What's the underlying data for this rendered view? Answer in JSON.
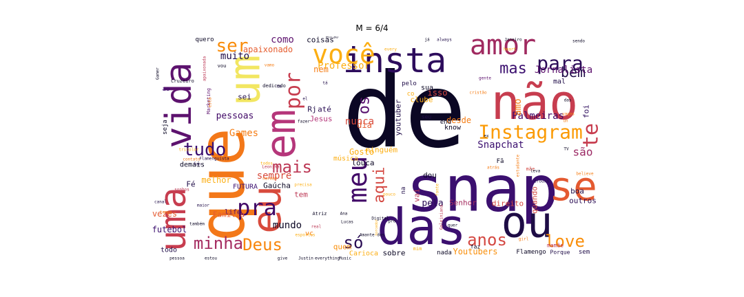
{
  "title": "M = 6/4",
  "word_cloud": {
    "words": [
      {
        "text": "de",
        "color": "#0b0724"
      },
      {
        "text": "snap",
        "color": "#3b0f6f"
      },
      {
        "text": "que",
        "color": "#f37819"
      },
      {
        "text": "das",
        "color": "#3b0f6f"
      },
      {
        "text": "não",
        "color": "#c73d4f"
      },
      {
        "text": "uma",
        "color": "#c73d4f"
      },
      {
        "text": "vida",
        "color": "#5d126e"
      },
      {
        "text": "eu",
        "color": "#d84a3c"
      },
      {
        "text": "insta",
        "color": "#2d0c5c"
      },
      {
        "text": "se",
        "color": "#e45a31"
      },
      {
        "text": "ou",
        "color": "#1e0c45"
      },
      {
        "text": "em",
        "color": "#b5367a"
      },
      {
        "text": "um",
        "color": "#f2e661"
      },
      {
        "text": "Instagram",
        "color": "#fb9b06"
      },
      {
        "text": "você",
        "color": "#fcae12"
      },
      {
        "text": "amor",
        "color": "#a02a60"
      },
      {
        "text": "meu",
        "color": "#420a68"
      },
      {
        "text": "tudo",
        "color": "#3b0f6f"
      },
      {
        "text": "minha",
        "color": "#a52c60"
      },
      {
        "text": "Deus",
        "color": "#f8870e"
      },
      {
        "text": "love",
        "color": "#f98e09"
      },
      {
        "text": "mais",
        "color": "#bc3754"
      },
      {
        "text": "pra",
        "color": "#410967"
      },
      {
        "text": "ser",
        "color": "#f98c0a"
      },
      {
        "text": "anos",
        "color": "#d44842"
      },
      {
        "text": "para",
        "color": "#2b0b57"
      },
      {
        "text": "só",
        "color": "#280b53"
      },
      {
        "text": "por",
        "color": "#c73d4f"
      },
      {
        "text": "os",
        "color": "#57106e"
      },
      {
        "text": "te",
        "color": "#c73d4f"
      },
      {
        "text": "aqui",
        "color": "#d44842"
      },
      {
        "text": "mas",
        "color": "#3b0f6f"
      },
      {
        "text": "bem",
        "color": "#1f0c48"
      },
      {
        "text": "Snapchat",
        "color": "#3b0f6f"
      },
      {
        "text": "são",
        "color": "#9b2964"
      },
      {
        "text": "muito",
        "color": "#1f0c48"
      },
      {
        "text": "como",
        "color": "#5d126e"
      },
      {
        "text": "apaixonado",
        "color": "#e65d2f"
      },
      {
        "text": "coisas",
        "color": "#0b0724"
      },
      {
        "text": "quero",
        "color": "#0b0724"
      },
      {
        "text": "mundo",
        "color": "#0b0724"
      },
      {
        "text": "pessoas",
        "color": "#410967"
      },
      {
        "text": "Games",
        "color": "#f57d15"
      },
      {
        "text": "sempre",
        "color": "#d84a3c"
      },
      {
        "text": "nunca",
        "color": "#d84a3c"
      },
      {
        "text": "dia",
        "color": "#e45a31"
      },
      {
        "text": "Jesus",
        "color": "#b5367a"
      },
      {
        "text": "Rj",
        "color": "#1f0c48"
      },
      {
        "text": "até",
        "color": "#280b53"
      },
      {
        "text": "nem",
        "color": "#f57d15"
      },
      {
        "text": "sei",
        "color": "#1f0c48"
      },
      {
        "text": "Professor",
        "color": "#fcae12"
      },
      {
        "text": "Palmeiras",
        "color": "#420a68"
      },
      {
        "text": "Jornalista",
        "color": "#5d126e"
      },
      {
        "text": "amo",
        "color": "#f57d15"
      },
      {
        "text": "foi",
        "color": "#2d0c5c"
      },
      {
        "text": "mal",
        "color": "#1f0c48"
      },
      {
        "text": "desde",
        "color": "#f57d15"
      },
      {
        "text": "know",
        "color": "#0b0724"
      },
      {
        "text": "isso",
        "color": "#d44842"
      },
      {
        "text": "sua",
        "color": "#0b0724"
      },
      {
        "text": "pelo",
        "color": "#1f0c48"
      },
      {
        "text": "youtuber",
        "color": "#1f0c48"
      },
      {
        "text": "seu",
        "color": "#1f0c48"
      },
      {
        "text": "pela",
        "color": "#280b53"
      },
      {
        "text": "Senhor",
        "color": "#a52c60"
      },
      {
        "text": "direito",
        "color": "#d44842"
      },
      {
        "text": "boa",
        "color": "#1f0c48"
      },
      {
        "text": "outros",
        "color": "#280b53"
      },
      {
        "text": "quando",
        "color": "#d44842"
      },
      {
        "text": "vai",
        "color": "#bc3754"
      },
      {
        "text": "na",
        "color": "#1f0c48"
      },
      {
        "text": "louca",
        "color": "#0b0724"
      },
      {
        "text": "música",
        "color": "#fcae12"
      },
      {
        "text": "Gosto",
        "color": "#fcae12"
      },
      {
        "text": "melhor",
        "color": "#fcae12"
      },
      {
        "text": "FUTURA",
        "color": "#3b0f6f"
      },
      {
        "text": "Gaúcha",
        "color": "#0b0724"
      },
      {
        "text": "tem",
        "color": "#bc3754"
      },
      {
        "text": "Fé",
        "color": "#1f0c48"
      },
      {
        "text": "vezes",
        "color": "#e45a31"
      },
      {
        "text": "Família",
        "color": "#e45a31"
      },
      {
        "text": "futebol",
        "color": "#3b0f6f"
      },
      {
        "text": "todo",
        "color": "#1f0c48"
      },
      {
        "text": "quem",
        "color": "#f98e09"
      },
      {
        "text": "Carioca",
        "color": "#fcae12"
      },
      {
        "text": "sobre",
        "color": "#0b0724"
      },
      {
        "text": "nada",
        "color": "#0b0724"
      },
      {
        "text": "Youtubers",
        "color": "#f98e09"
      },
      {
        "text": "Flamengo",
        "color": "#0b0724"
      },
      {
        "text": "Porque",
        "color": "#1f0c48"
      },
      {
        "text": "mamãe",
        "color": "#bc3754"
      },
      {
        "text": "sem",
        "color": "#1f0c48"
      },
      {
        "text": "ao",
        "color": "#3b0f6f"
      },
      {
        "text": "seja",
        "color": "#0b0724"
      },
      {
        "text": "demais",
        "color": "#0b0724"
      },
      {
        "text": "life",
        "color": "#57106e"
      },
      {
        "text": "vc",
        "color": "#f57d15"
      },
      {
        "text": "ninguém",
        "color": "#fcae12"
      },
      {
        "text": "clube",
        "color": "#fcae12"
      },
      {
        "text": "co",
        "color": "#fcae12"
      },
      {
        "text": "end",
        "color": "#0b0724"
      },
      {
        "text": "Fã",
        "color": "#0b0724"
      },
      {
        "text": "mãe",
        "color": "#d44842"
      },
      {
        "text": "dou",
        "color": "#0b0724"
      },
      {
        "text": "tá",
        "color": "#1f0c48"
      },
      {
        "text": "fazer",
        "color": "#0b0724"
      },
      {
        "text": "Ana",
        "color": "#0b0724"
      },
      {
        "text": "Lucas",
        "color": "#0b0724"
      },
      {
        "text": "Atriz",
        "color": "#0b0724"
      },
      {
        "text": "give",
        "color": "#0b0724"
      },
      {
        "text": "Justin",
        "color": "#0b0724"
      },
      {
        "text": "everything",
        "color": "#0b0724"
      },
      {
        "text": "Music",
        "color": "#0b0724"
      },
      {
        "text": "pessoa",
        "color": "#0b0724"
      },
      {
        "text": "estou",
        "color": "#0b0724"
      },
      {
        "text": "também",
        "color": "#0b0724"
      },
      {
        "text": "faz",
        "color": "#0b0724"
      },
      {
        "text": "mim",
        "color": "#fcae12"
      },
      {
        "text": "quer",
        "color": "#0b0724"
      },
      {
        "text": "vou",
        "color": "#0b0724"
      },
      {
        "text": "Cruzeiro",
        "color": "#0b0724"
      },
      {
        "text": "dedicado",
        "color": "#0b0724"
      },
      {
        "text": "então",
        "color": "#0b0724"
      },
      {
        "text": "always",
        "color": "#1f0c48"
      },
      {
        "text": "Janeiro",
        "color": "#0b0724"
      },
      {
        "text": "sendo",
        "color": "#0b0724"
      },
      {
        "text": "das",
        "color": "#0b0724"
      },
      {
        "text": "un",
        "color": "#f57d15"
      },
      {
        "text": "TV",
        "color": "#0b0724"
      },
      {
        "text": "leva",
        "color": "#0b0724"
      },
      {
        "text": "já",
        "color": "#0b0724"
      },
      {
        "text": "Amante dos",
        "color": "#0b0724"
      },
      {
        "text": "ex",
        "color": "#0b0724"
      },
      {
        "text": "pro",
        "color": "#0b0724"
      },
      {
        "text": "Digital",
        "color": "#0b0724"
      },
      {
        "text": "Gamer",
        "color": "#0b0724"
      },
      {
        "text": "Marketing",
        "color": "#5d126e"
      },
      {
        "text": "apaixonada",
        "color": "#bc3754"
      },
      {
        "text": "gente",
        "color": "#5d126e"
      },
      {
        "text": "cristão",
        "color": "#f57d15"
      },
      {
        "text": "tempo",
        "color": "#f57d15"
      },
      {
        "text": "sonhos",
        "color": "#bc3754"
      },
      {
        "text": "canal",
        "color": "#1f0c48"
      },
      {
        "text": "maior",
        "color": "#1f0c48"
      },
      {
        "text": "real",
        "color": "#bc3754"
      },
      {
        "text": "está",
        "color": "#f57d15"
      },
      {
        "text": "Flamenguista",
        "color": "#1f0c48"
      },
      {
        "text": "tricolor",
        "color": "#fcae12"
      },
      {
        "text": "Leonina",
        "color": "#bc3754"
      },
      {
        "text": "todos",
        "color": "#fcae12"
      },
      {
        "text": "pouco",
        "color": "#fcae12"
      },
      {
        "text": "atrás",
        "color": "#f57d15"
      },
      {
        "text": "vamo",
        "color": "#f57d15"
      },
      {
        "text": "estudante",
        "color": "#f57d15"
      },
      {
        "text": "girl",
        "color": "#f57d15"
      },
      {
        "text": "Goleiniana",
        "color": "#bc3754"
      },
      {
        "text": "torcedor",
        "color": "#fcae12"
      },
      {
        "text": "esportes",
        "color": "#fcae12"
      },
      {
        "text": "contato",
        "color": "#f57d15"
      },
      {
        "text": "fonte",
        "color": "#fcae12"
      },
      {
        "text": "every",
        "color": "#fcae12"
      },
      {
        "text": "heart",
        "color": "#fcae12"
      },
      {
        "text": "vagas",
        "color": "#f57d15"
      },
      {
        "text": "normal",
        "color": "#f57d15"
      },
      {
        "text": "fan",
        "color": "#1f0c48"
      },
      {
        "text": "ta",
        "color": "#1f0c48"
      },
      {
        "text": "el",
        "color": "#1f0c48"
      },
      {
        "text": "precisa",
        "color": "#fcae12"
      },
      {
        "text": "believe",
        "color": "#f57d15"
      },
      {
        "text": "trouxa",
        "color": "#1f0c48"
      },
      {
        "text": "seus",
        "color": "#fcae12"
      },
      {
        "text": "sorte",
        "color": "#fcae12"
      }
    ]
  }
}
